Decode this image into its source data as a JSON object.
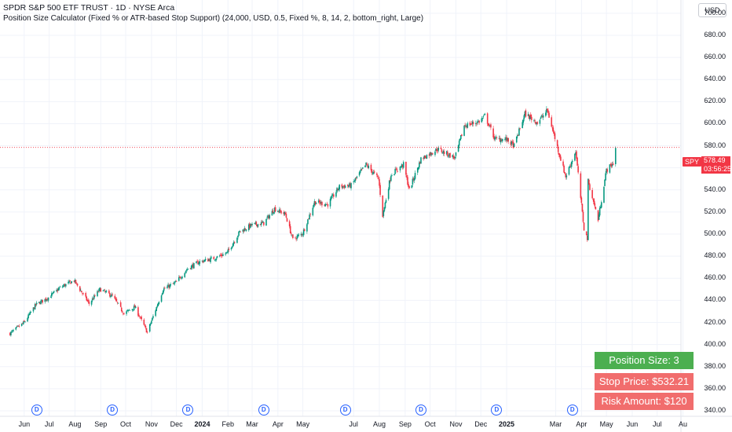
{
  "header": {
    "symbol_title": "SPDR S&P 500 ETF TRUST · 1D · NYSE Arca",
    "indicator": "Position Size Calculator (Fixed % or ATR-based Stop Support) (24,000, USD, 0.5, Fixed %, 8, 14, 2, bottom_right, Large)"
  },
  "currency": "USD",
  "price_tag": {
    "symbol": "SPY",
    "price": "578.49",
    "countdown": "03:56:25"
  },
  "calculator": {
    "position_size": "Position Size: 3 shares",
    "stop_price": "Stop Price: $532.21",
    "risk_amount": "Risk Amount: $120"
  },
  "dividend_marker": "D",
  "colors": {
    "up": "#089981",
    "down": "#f23645",
    "position_bg": "#4caf50",
    "risk_bg": "#f16d6d",
    "dividend": "#2962ff"
  },
  "chart_data": {
    "type": "candlestick",
    "title": "SPDR S&P 500 ETF TRUST · 1D · NYSE Arca",
    "y_ticks": [
      "700.00",
      "680.00",
      "660.00",
      "640.00",
      "620.00",
      "600.00",
      "580.00",
      "560.00",
      "540.00",
      "520.00",
      "500.00",
      "480.00",
      "460.00",
      "440.00",
      "420.00",
      "400.00",
      "380.00",
      "360.00",
      "340.00"
    ],
    "ylim": [
      335,
      712
    ],
    "x_ticks": [
      "Jun",
      "Jul",
      "Aug",
      "Sep",
      "Oct",
      "Nov",
      "Dec",
      "2024",
      "Feb",
      "Mar",
      "Apr",
      "May",
      "Jul",
      "Aug",
      "Sep",
      "Oct",
      "Nov",
      "Dec",
      "2025",
      "Mar",
      "Apr",
      "May",
      "Jun",
      "Jul",
      "Au"
    ],
    "x_tick_dates": [
      "2023-06-01",
      "2023-07-01",
      "2023-08-01",
      "2023-09-01",
      "2023-10-01",
      "2023-11-01",
      "2023-12-01",
      "2024-01-01",
      "2024-02-01",
      "2024-03-01",
      "2024-04-01",
      "2024-05-01",
      "2024-07-01",
      "2024-08-01",
      "2024-09-01",
      "2024-10-01",
      "2024-11-01",
      "2024-12-01",
      "2025-01-01",
      "2025-03-01",
      "2025-04-01",
      "2025-05-01",
      "2025-06-01",
      "2025-07-01",
      "2025-08-01"
    ],
    "last_price": 578.49,
    "dividend_dates": [
      "2023-06-16",
      "2023-09-15",
      "2023-12-15",
      "2024-03-15",
      "2024-06-21",
      "2024-09-20",
      "2024-12-20",
      "2025-03-21"
    ],
    "close_series": [
      [
        "2023-05-15",
        410
      ],
      [
        "2023-06-01",
        420
      ],
      [
        "2023-06-15",
        436
      ],
      [
        "2023-07-01",
        443
      ],
      [
        "2023-07-15",
        452
      ],
      [
        "2023-07-31",
        458
      ],
      [
        "2023-08-18",
        437
      ],
      [
        "2023-08-31",
        450
      ],
      [
        "2023-09-15",
        444
      ],
      [
        "2023-09-29",
        428
      ],
      [
        "2023-10-12",
        434
      ],
      [
        "2023-10-27",
        411
      ],
      [
        "2023-11-15",
        450
      ],
      [
        "2023-11-30",
        456
      ],
      [
        "2023-12-15",
        469
      ],
      [
        "2023-12-29",
        475
      ],
      [
        "2024-01-15",
        478
      ],
      [
        "2024-01-31",
        483
      ],
      [
        "2024-02-15",
        502
      ],
      [
        "2024-02-29",
        508
      ],
      [
        "2024-03-15",
        510
      ],
      [
        "2024-03-28",
        523
      ],
      [
        "2024-04-10",
        518
      ],
      [
        "2024-04-19",
        495
      ],
      [
        "2024-05-01",
        501
      ],
      [
        "2024-05-15",
        529
      ],
      [
        "2024-05-31",
        527
      ],
      [
        "2024-06-14",
        543
      ],
      [
        "2024-06-28",
        544
      ],
      [
        "2024-07-16",
        563
      ],
      [
        "2024-07-31",
        550
      ],
      [
        "2024-08-05",
        517
      ],
      [
        "2024-08-15",
        554
      ],
      [
        "2024-08-30",
        563
      ],
      [
        "2024-09-06",
        540
      ],
      [
        "2024-09-20",
        568
      ],
      [
        "2024-10-10",
        577
      ],
      [
        "2024-10-31",
        569
      ],
      [
        "2024-11-11",
        598
      ],
      [
        "2024-11-29",
        602
      ],
      [
        "2024-12-06",
        607
      ],
      [
        "2024-12-18",
        586
      ],
      [
        "2024-12-31",
        586
      ],
      [
        "2025-01-10",
        580
      ],
      [
        "2025-01-23",
        609
      ],
      [
        "2025-02-07",
        601
      ],
      [
        "2025-02-19",
        612
      ],
      [
        "2025-03-04",
        576
      ],
      [
        "2025-03-13",
        552
      ],
      [
        "2025-03-25",
        575
      ],
      [
        "2025-04-04",
        505
      ],
      [
        "2025-04-08",
        496
      ],
      [
        "2025-04-09",
        548
      ],
      [
        "2025-04-21",
        513
      ],
      [
        "2025-05-01",
        558
      ],
      [
        "2025-05-09",
        564
      ],
      [
        "2025-05-12",
        578.49
      ]
    ]
  }
}
